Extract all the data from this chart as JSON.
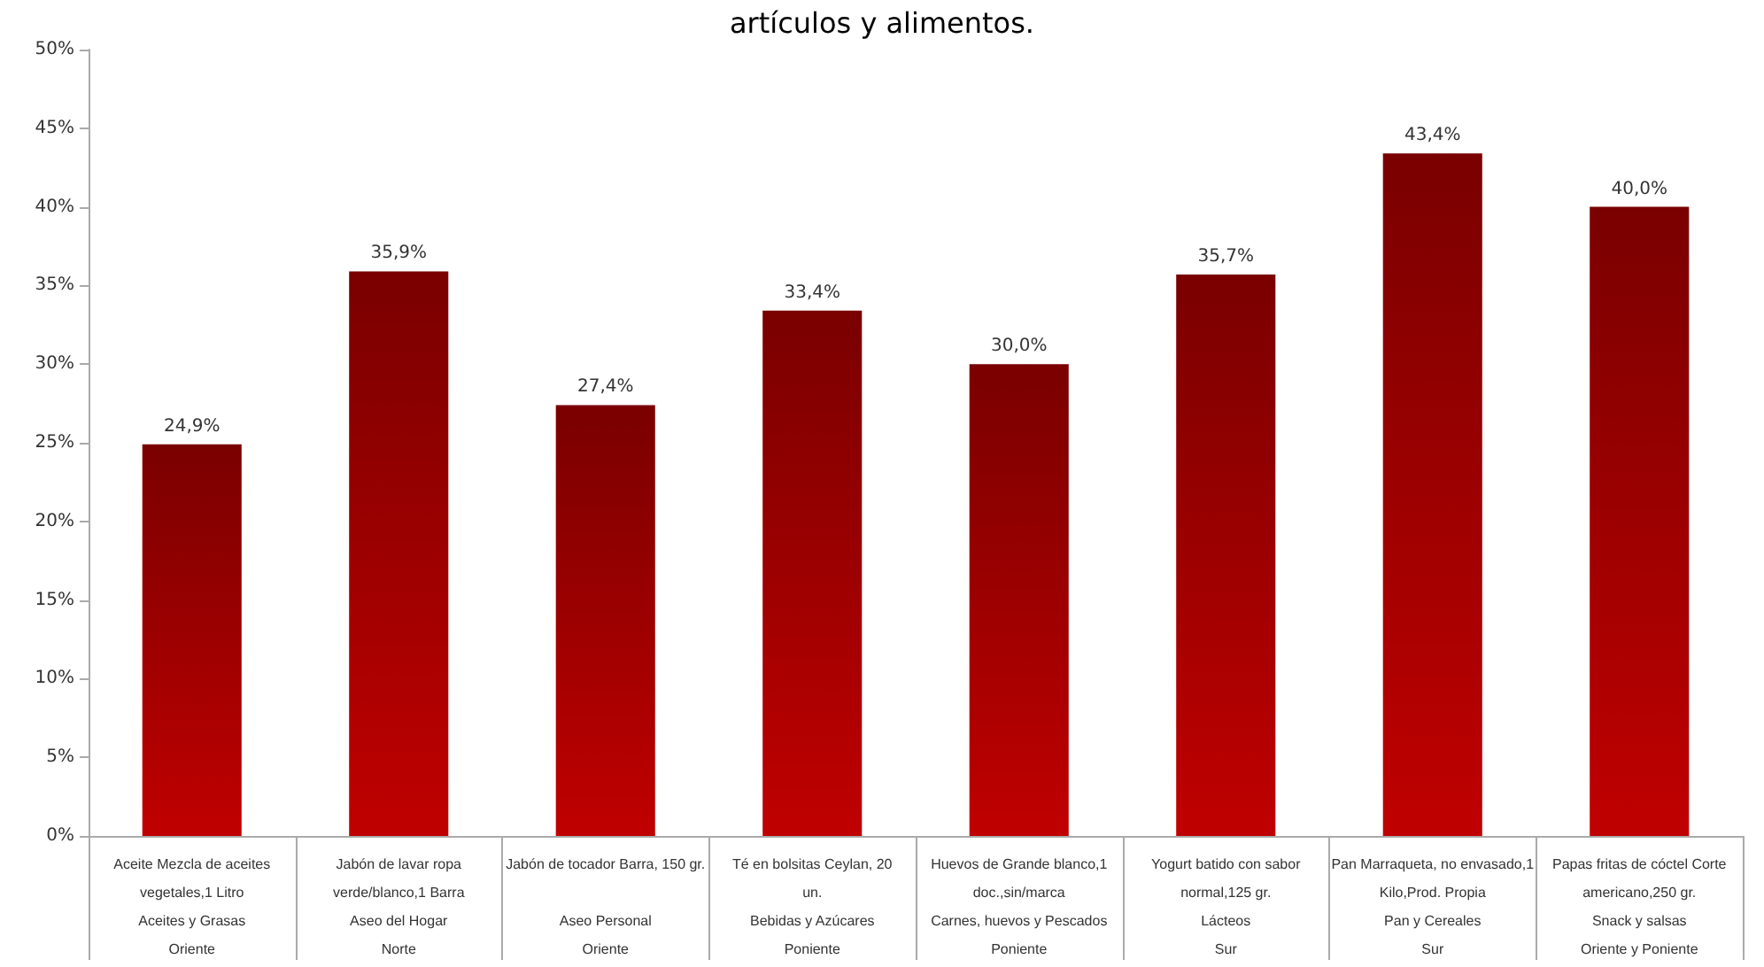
{
  "chart_data": {
    "type": "bar",
    "title": "artículos y alimentos.",
    "categories": [
      "Aceite Mezcla de aceites\nvegetales,1 Litro\nAceites y Grasas\nOriente",
      "Jabón de lavar ropa\nverde/blanco,1 Barra\nAseo del Hogar\nNorte",
      "Jabón de tocador Barra, 150 gr.\n\nAseo Personal\nOriente",
      "Té en bolsitas Ceylan, 20\nun.\nBebidas y Azúcares\nPoniente",
      "Huevos de Grande blanco,1\ndoc.,sin/marca\nCarnes, huevos y Pescados\nPoniente",
      "Yogurt batido con sabor\nnormal,125 gr.\nLácteos\nSur",
      "Pan Marraqueta, no envasado,1\nKilo,Prod. Propia\nPan y Cereales\nSur",
      "Papas fritas de cóctel Corte\namericano,250 gr.\nSnack y salsas\nOriente y Poniente"
    ],
    "values": [
      24.9,
      35.9,
      27.4,
      33.4,
      30.0,
      35.7,
      43.4,
      40.0
    ],
    "value_labels": [
      "24,9%",
      "35,9%",
      "27,4%",
      "33,4%",
      "30,0%",
      "35,7%",
      "43,4%",
      "40,0%"
    ],
    "color": "#c00000",
    "ylim": [
      0,
      50
    ],
    "yticks": [
      {
        "value": 0,
        "label": "0%"
      },
      {
        "value": 5,
        "label": "5%"
      },
      {
        "value": 10,
        "label": "10%"
      },
      {
        "value": 15,
        "label": "15%"
      },
      {
        "value": 20,
        "label": "20%"
      },
      {
        "value": 25,
        "label": "25%"
      },
      {
        "value": 30,
        "label": "30%"
      },
      {
        "value": 35,
        "label": "35%"
      },
      {
        "value": 40,
        "label": "40%"
      },
      {
        "value": 45,
        "label": "45%"
      },
      {
        "value": 50,
        "label": "50%"
      }
    ],
    "grid": false
  }
}
